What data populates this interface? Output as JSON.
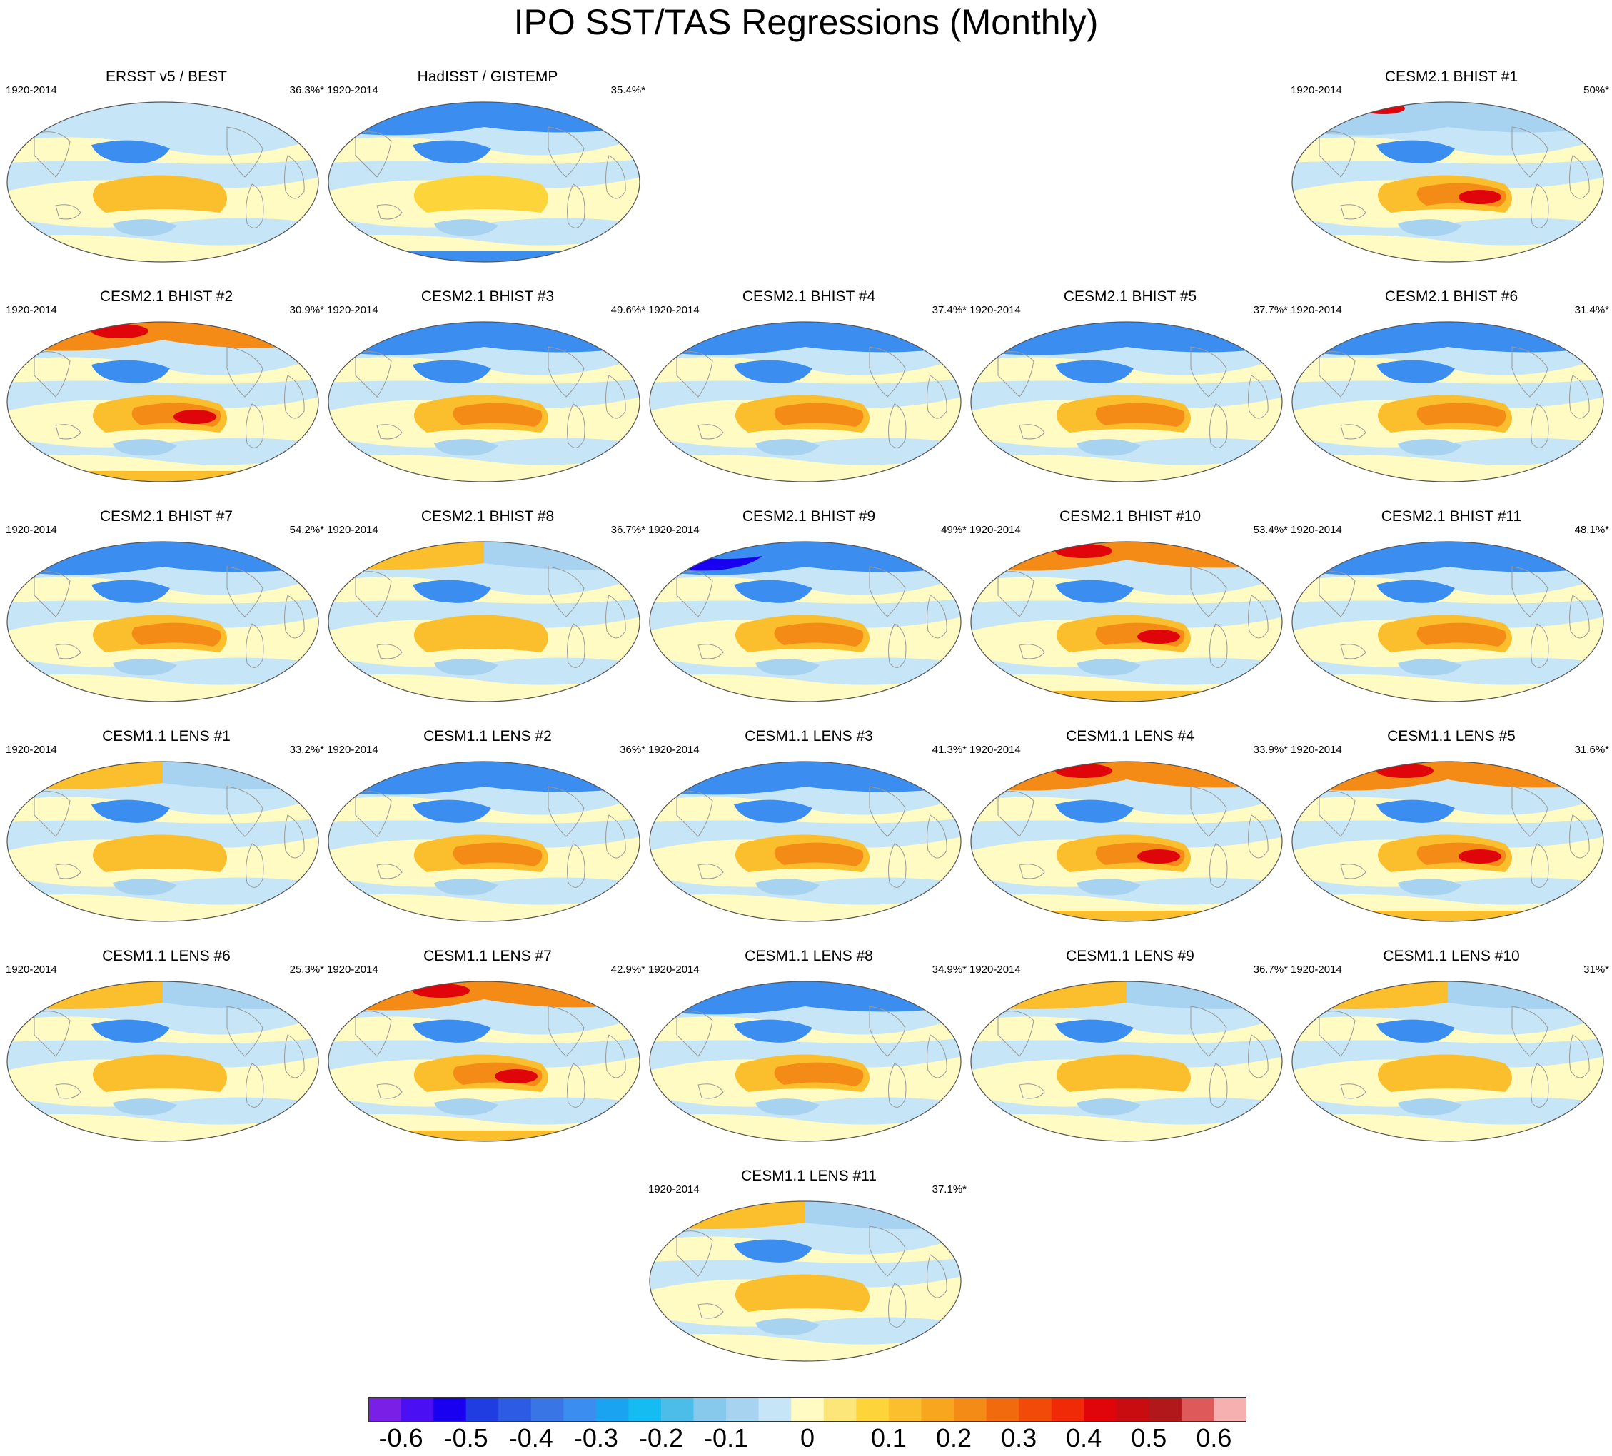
{
  "title": "IPO SST/TAS Regressions (Monthly)",
  "panels": [
    {
      "name": "ERSST v5 / BEST",
      "years": "1920-2014",
      "pct": "36.3%*",
      "style": "obs1",
      "row": 0,
      "col": 0
    },
    {
      "name": "HadISST / GISTEMP",
      "years": "1920-2014",
      "pct": "35.4%*",
      "style": "obs2",
      "row": 0,
      "col": 1
    },
    {
      "name": "CESM2.1 BHIST #1",
      "years": "1920-2014",
      "pct": "50%*",
      "style": "strong",
      "row": 0,
      "col": 4
    },
    {
      "name": "CESM2.1 BHIST #2",
      "years": "1920-2014",
      "pct": "30.9%*",
      "style": "warmnorth",
      "row": 1,
      "col": 0
    },
    {
      "name": "CESM2.1 BHIST #3",
      "years": "1920-2014",
      "pct": "49.6%*",
      "style": "coldnorth",
      "row": 1,
      "col": 1
    },
    {
      "name": "CESM2.1 BHIST #4",
      "years": "1920-2014",
      "pct": "37.4%*",
      "style": "coldnorth",
      "row": 1,
      "col": 2
    },
    {
      "name": "CESM2.1 BHIST #5",
      "years": "1920-2014",
      "pct": "37.7%*",
      "style": "coldnorth",
      "row": 1,
      "col": 3
    },
    {
      "name": "CESM2.1 BHIST #6",
      "years": "1920-2014",
      "pct": "31.4%*",
      "style": "coldnorth",
      "row": 1,
      "col": 4
    },
    {
      "name": "CESM2.1 BHIST #7",
      "years": "1920-2014",
      "pct": "54.2%*",
      "style": "coldnorth",
      "row": 2,
      "col": 0
    },
    {
      "name": "CESM2.1 BHIST #8",
      "years": "1920-2014",
      "pct": "36.7%*",
      "style": "mixed",
      "row": 2,
      "col": 1
    },
    {
      "name": "CESM2.1 BHIST #9",
      "years": "1920-2014",
      "pct": "49%*",
      "style": "verycold",
      "row": 2,
      "col": 2
    },
    {
      "name": "CESM2.1 BHIST #10",
      "years": "1920-2014",
      "pct": "53.4%*",
      "style": "warmnorth",
      "row": 2,
      "col": 3
    },
    {
      "name": "CESM2.1 BHIST #11",
      "years": "1920-2014",
      "pct": "48.1%*",
      "style": "coldnorth",
      "row": 2,
      "col": 4
    },
    {
      "name": "CESM1.1 LENS #1",
      "years": "1920-2014",
      "pct": "33.2%*",
      "style": "mixed",
      "row": 3,
      "col": 0
    },
    {
      "name": "CESM1.1 LENS #2",
      "years": "1920-2014",
      "pct": "36%*",
      "style": "coldnorth",
      "row": 3,
      "col": 1
    },
    {
      "name": "CESM1.1 LENS #3",
      "years": "1920-2014",
      "pct": "41.3%*",
      "style": "coldnorth",
      "row": 3,
      "col": 2
    },
    {
      "name": "CESM1.1 LENS #4",
      "years": "1920-2014",
      "pct": "33.9%*",
      "style": "warmnorth",
      "row": 3,
      "col": 3
    },
    {
      "name": "CESM1.1 LENS #5",
      "years": "1920-2014",
      "pct": "31.6%*",
      "style": "warmnorth",
      "row": 3,
      "col": 4
    },
    {
      "name": "CESM1.1 LENS #6",
      "years": "1920-2014",
      "pct": "25.3%*",
      "style": "mixed",
      "row": 4,
      "col": 0
    },
    {
      "name": "CESM1.1 LENS #7",
      "years": "1920-2014",
      "pct": "42.9%*",
      "style": "warmnorth",
      "row": 4,
      "col": 1
    },
    {
      "name": "CESM1.1 LENS #8",
      "years": "1920-2014",
      "pct": "34.9%*",
      "style": "coldnorth",
      "row": 4,
      "col": 2
    },
    {
      "name": "CESM1.1 LENS #9",
      "years": "1920-2014",
      "pct": "36.7%*",
      "style": "mixed",
      "row": 4,
      "col": 3
    },
    {
      "name": "CESM1.1 LENS #10",
      "years": "1920-2014",
      "pct": "31%*",
      "style": "mixed",
      "row": 4,
      "col": 4
    },
    {
      "name": "CESM1.1 LENS #11",
      "years": "1920-2014",
      "pct": "37.1%*",
      "style": "mixed",
      "row": 5,
      "col": 2
    }
  ],
  "colorbar": {
    "colors": [
      "#7a1fe6",
      "#4a0ff2",
      "#1a00f0",
      "#1f3de0",
      "#2d5be3",
      "#3a75e6",
      "#3b8ef0",
      "#1aa3f0",
      "#14bcf2",
      "#4bbde8",
      "#86c9ec",
      "#a7d3f1",
      "#c6e5f6",
      "#fffbc2",
      "#fde679",
      "#fdd43a",
      "#fbbf2d",
      "#f7a61e",
      "#f48b16",
      "#f26a0e",
      "#f24a08",
      "#f02a06",
      "#e0050a",
      "#c80c10",
      "#b0181c",
      "#de5a5a",
      "#f7b0b0"
    ],
    "ticks": [
      "-0.6",
      "-0.5",
      "-0.4",
      "-0.3",
      "-0.2",
      "-0.1",
      "0",
      "0.1",
      "0.2",
      "0.3",
      "0.4",
      "0.5",
      "0.6"
    ]
  }
}
